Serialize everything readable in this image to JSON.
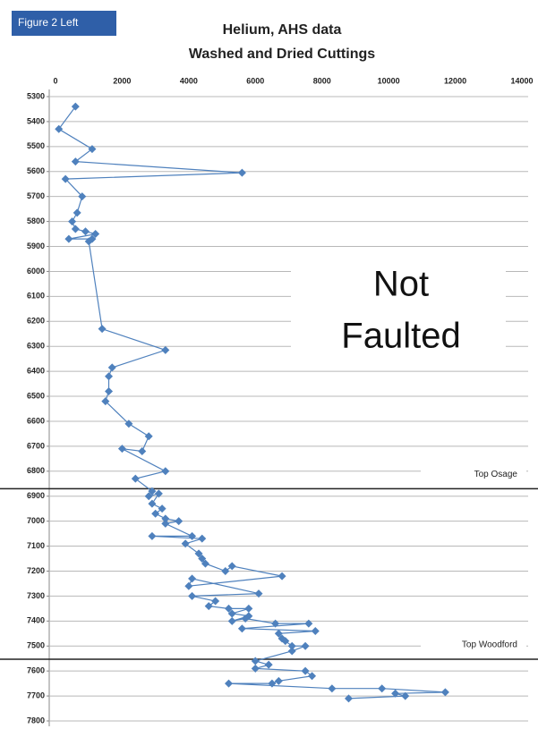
{
  "chart_data": {
    "type": "scatter-line",
    "label": "Figure 2 Left",
    "title": "Helium, AHS data",
    "subtitle": "Washed and Dried Cuttings",
    "annotation": "Not Faulted",
    "y_inverted": true,
    "grid": true,
    "xlim": [
      0,
      14000
    ],
    "xticks": [
      0,
      2000,
      4000,
      6000,
      8000,
      10000,
      12000,
      14000
    ],
    "ylim": [
      5300,
      7800
    ],
    "yticks": [
      5300,
      5400,
      5500,
      5600,
      5700,
      5800,
      5900,
      6000,
      6100,
      6200,
      6300,
      6400,
      6500,
      6600,
      6700,
      6800,
      6900,
      7000,
      7100,
      7200,
      7300,
      7400,
      7500,
      7600,
      7700,
      7800
    ],
    "markers": [
      {
        "label": "Top Osage",
        "value": 6870
      },
      {
        "label": "Top Woodford",
        "value": 7553
      }
    ],
    "series": [
      {
        "color": "#4f81bd",
        "x": [
          600,
          100,
          1100,
          600,
          5600,
          300,
          800,
          650,
          500,
          600,
          900,
          1200,
          400,
          1100,
          1000,
          1400,
          3300,
          1700,
          1600,
          1600,
          1500,
          2200,
          2800,
          2600,
          2000,
          3300,
          2400,
          2900,
          2800,
          3100,
          2900,
          3200,
          3000,
          3300,
          3700,
          3300,
          4100,
          2900,
          4400,
          3900,
          4300,
          4400,
          4500,
          5100,
          5300,
          6800,
          4000,
          4100,
          6100,
          4100,
          4800,
          4600,
          5200,
          5800,
          5300,
          5800,
          5300,
          5700,
          6600,
          7600,
          5600,
          7800,
          6700,
          6800,
          6900,
          7100,
          7500,
          7100,
          6000,
          6400,
          6000,
          7500,
          7700,
          6700,
          6500,
          5200,
          8300,
          9800,
          11700,
          10200,
          10500,
          8800
        ],
        "values": [
          5340,
          5430,
          5510,
          5560,
          5605,
          5630,
          5700,
          5765,
          5800,
          5830,
          5840,
          5850,
          5870,
          5870,
          5880,
          6230,
          6315,
          6385,
          6420,
          6480,
          6520,
          6610,
          6660,
          6720,
          6710,
          6800,
          6830,
          6880,
          6900,
          6890,
          6930,
          6950,
          6970,
          6990,
          7000,
          7010,
          7060,
          7060,
          7070,
          7090,
          7130,
          7150,
          7170,
          7200,
          7180,
          7220,
          7260,
          7230,
          7290,
          7300,
          7320,
          7340,
          7350,
          7350,
          7370,
          7380,
          7400,
          7390,
          7410,
          7410,
          7430,
          7440,
          7450,
          7470,
          7480,
          7500,
          7500,
          7520,
          7560,
          7575,
          7590,
          7600,
          7620,
          7640,
          7650,
          7650,
          7670,
          7670,
          7685,
          7690,
          7700,
          7710
        ]
      }
    ]
  }
}
